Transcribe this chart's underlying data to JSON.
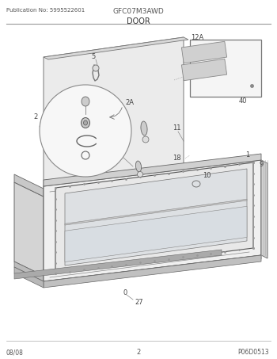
{
  "pub_no": "Publication No: 5995522601",
  "model": "GFC07M3AWD",
  "section": "DOOR",
  "page_code": "P06D0513",
  "date": "08/08",
  "page_num": "2",
  "bg_color": "#ffffff",
  "line_color": "#aaaaaa",
  "dark_line": "#666666",
  "text_color": "#444444",
  "gray1": "#e8e8e8",
  "gray2": "#d8d8d8",
  "gray3": "#c8c8c8",
  "gray4": "#b8b8b8"
}
